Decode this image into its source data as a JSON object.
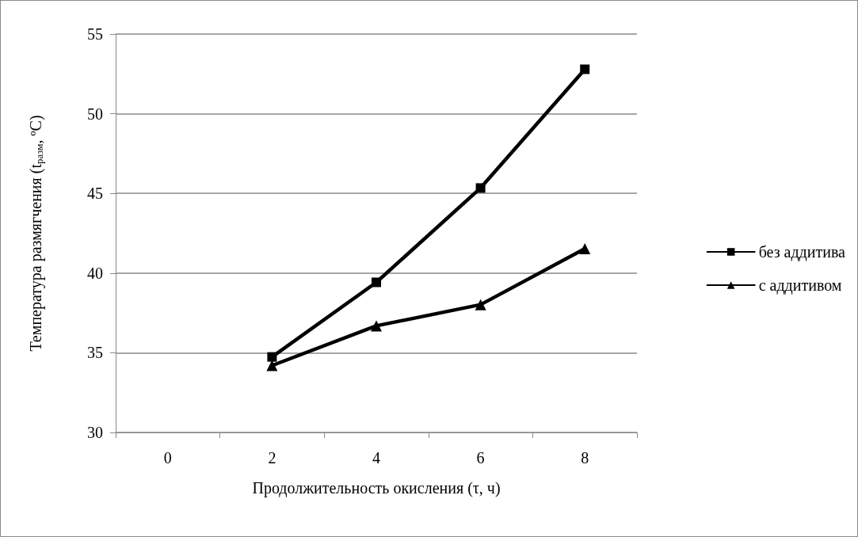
{
  "chart_data": {
    "type": "line",
    "xlabel": "Продолжительность окисления (τ, ч)",
    "ylabel": "Температура размягчения (t$_{разм}$, ºC)",
    "categories": [
      "0",
      "2",
      "4",
      "6",
      "8"
    ],
    "series": [
      {
        "name": "без аддитива",
        "color": "#000000",
        "marker": "square",
        "values": [
          null,
          34.74,
          39.42,
          45.34,
          52.79
        ]
      },
      {
        "name": "с аддитивом",
        "color": "#000000",
        "marker": "triangle",
        "values": [
          null,
          34.2,
          36.69,
          38.02,
          41.53
        ]
      }
    ],
    "ylim": [
      30,
      55
    ],
    "yticks": [
      30,
      35,
      40,
      45,
      50,
      55
    ],
    "grid": "y",
    "legend": "right",
    "line_style": "solid"
  }
}
